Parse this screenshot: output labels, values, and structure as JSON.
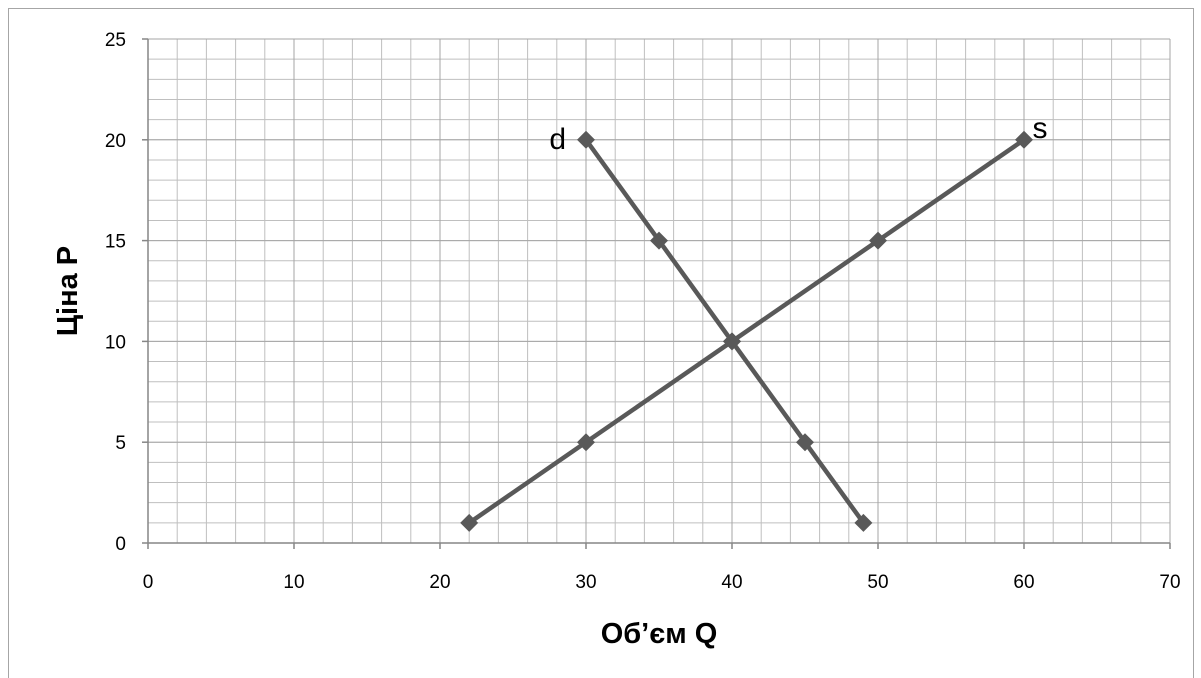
{
  "chart_data": {
    "type": "line",
    "xlabel": "Об’єм Q",
    "ylabel": "Ціна P",
    "xlim": [
      0,
      70
    ],
    "ylim": [
      0,
      25
    ],
    "x_ticks": [
      "0",
      "10",
      "20",
      "30",
      "40",
      "50",
      "60",
      "70"
    ],
    "y_ticks": [
      "0",
      "5",
      "10",
      "15",
      "20",
      "25"
    ],
    "grid": true,
    "legend": "none",
    "series": [
      {
        "name": "d",
        "color": "#595959",
        "points": [
          [
            30,
            20
          ],
          [
            35,
            15
          ],
          [
            40,
            10
          ],
          [
            45,
            5
          ],
          [
            49,
            1
          ]
        ]
      },
      {
        "name": "s",
        "color": "#595959",
        "points": [
          [
            22,
            1
          ],
          [
            30,
            5
          ],
          [
            40,
            10
          ],
          [
            50,
            15
          ],
          [
            60,
            20
          ]
        ]
      }
    ]
  }
}
